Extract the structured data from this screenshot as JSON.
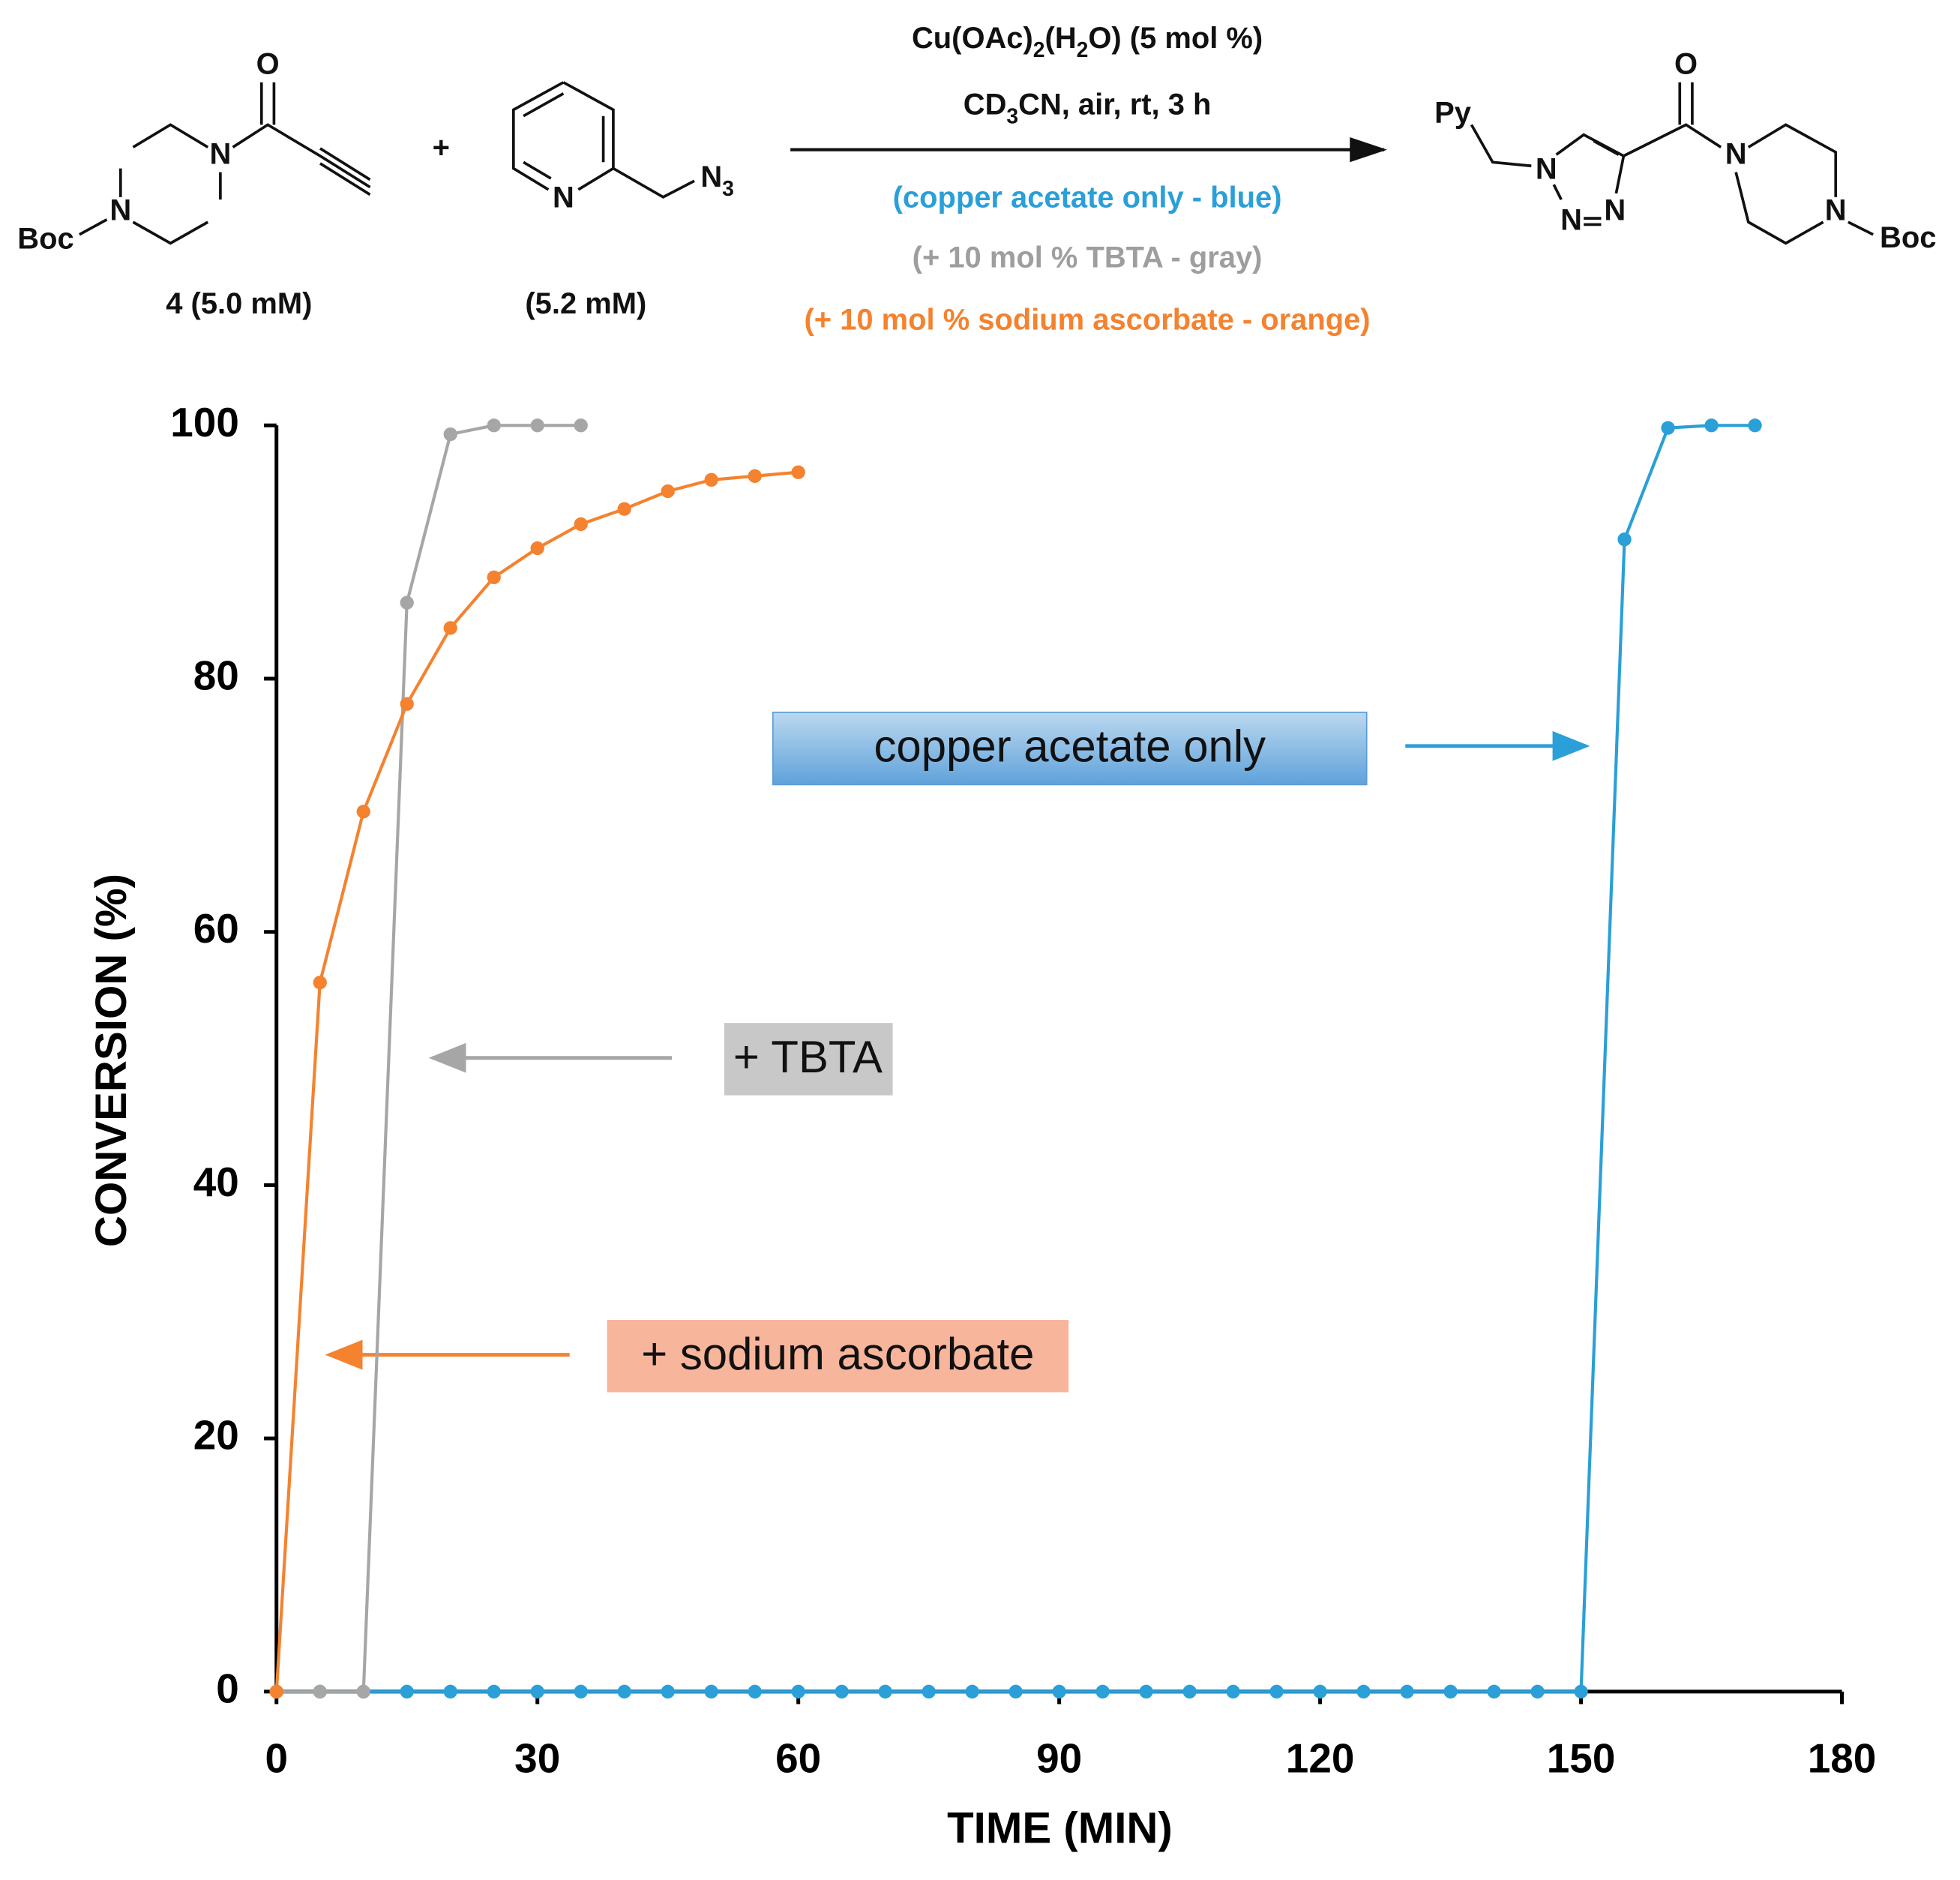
{
  "scheme": {
    "reactant1": {
      "atoms": [
        "O",
        "N",
        "N",
        "Boc"
      ],
      "label": "4 (5.0 mM)"
    },
    "plus": "+",
    "reactant2": {
      "atoms": [
        "N",
        [
          "N",
          "3"
        ]
      ],
      "label": "(5.2 mM)"
    },
    "conditions": [
      [
        "Cu(OAc)",
        "2",
        "(H",
        "2",
        "O) (5 mol %)"
      ],
      [
        "CD",
        "3",
        "CN, air, rt, 3 h"
      ],
      "(copper acetate only - blue)",
      "(+ 10 mol % TBTA - gray)",
      "(+ 10 mol % sodium ascorbate - orange)"
    ],
    "product": {
      "atoms": [
        "Py",
        "N",
        "N",
        "N",
        "O",
        "N",
        "N",
        "Boc"
      ]
    }
  },
  "chart_data": {
    "type": "line",
    "xlabel": "TIME (MIN)",
    "ylabel": "CONVERSION (%)",
    "xlim": [
      0,
      180
    ],
    "xticks": [
      0,
      30,
      60,
      90,
      120,
      150,
      180
    ],
    "ylim": [
      0,
      100
    ],
    "yticks": [
      0,
      20,
      40,
      60,
      80,
      100
    ],
    "series": [
      {
        "name": "copper acetate only",
        "color": "#2a9fd8",
        "x": [
          0,
          5,
          10,
          15,
          20,
          25,
          30,
          35,
          40,
          45,
          50,
          55,
          60,
          65,
          70,
          75,
          80,
          85,
          90,
          95,
          100,
          105,
          110,
          115,
          120,
          125,
          130,
          135,
          140,
          145,
          150,
          155,
          160,
          165,
          170
        ],
        "values": [
          0,
          0,
          0,
          0,
          0,
          0,
          0,
          0,
          0,
          0,
          0,
          0,
          0,
          0,
          0,
          0,
          0,
          0,
          0,
          0,
          0,
          0,
          0,
          0,
          0,
          0,
          0,
          0,
          0,
          0,
          0,
          91,
          99.8,
          100,
          100
        ]
      },
      {
        "name": "+ TBTA",
        "color": "#a6a6a6",
        "x": [
          0,
          5,
          10,
          15,
          20,
          25,
          30,
          35
        ],
        "values": [
          0,
          0,
          0,
          86,
          99.3,
          100,
          100,
          100
        ]
      },
      {
        "name": "+ sodium ascorbate",
        "color": "#f4822f",
        "x": [
          0,
          5,
          10,
          15,
          20,
          25,
          30,
          35,
          40,
          45,
          50,
          55,
          60
        ],
        "values": [
          0,
          56,
          69.5,
          78,
          84,
          88,
          90.3,
          92.2,
          93.4,
          94.8,
          95.7,
          96,
          96.3
        ]
      }
    ]
  }
}
